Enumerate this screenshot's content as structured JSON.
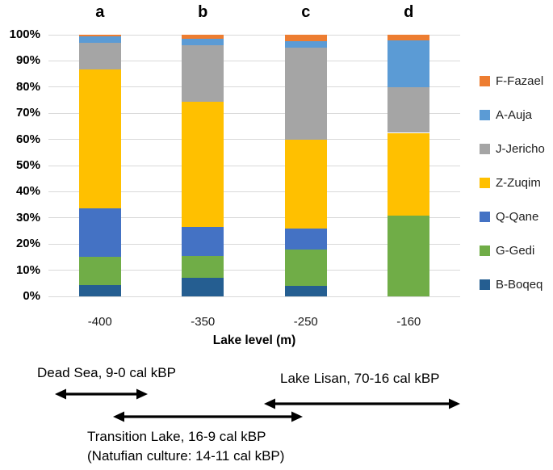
{
  "chart_data": {
    "type": "bar",
    "stacked": true,
    "units": "percent",
    "xlabel": "Lake level (m)",
    "ylabel": "",
    "ylim": [
      0,
      100
    ],
    "ytick_step": 10,
    "ytick_labels": [
      "0%",
      "10%",
      "20%",
      "30%",
      "40%",
      "50%",
      "60%",
      "70%",
      "80%",
      "90%",
      "100%"
    ],
    "categories": [
      "-400",
      "-350",
      "-250",
      "-160"
    ],
    "panel_labels": [
      "a",
      "b",
      "c",
      "d"
    ],
    "grid": true,
    "legend_position": "right",
    "stack_order": "bottom-to-top",
    "series": [
      {
        "name": "B-Boqeq",
        "color": "#255E91",
        "values": [
          4.3,
          7.0,
          4.0,
          0.0
        ]
      },
      {
        "name": "G-Gedi",
        "color": "#70AD47",
        "values": [
          10.8,
          8.5,
          14.0,
          31.0
        ]
      },
      {
        "name": "Q-Qane",
        "color": "#4472C4",
        "values": [
          18.4,
          11.0,
          8.0,
          0.0
        ]
      },
      {
        "name": "Z-Zuqim",
        "color": "#FFC000",
        "values": [
          53.2,
          48.0,
          34.0,
          31.5
        ]
      },
      {
        "name": "J-Jericho",
        "color": "#A5A5A5",
        "values": [
          10.3,
          21.6,
          35.0,
          17.5
        ]
      },
      {
        "name": "A-Auja",
        "color": "#5B9BD5",
        "values": [
          2.5,
          2.5,
          2.5,
          17.8
        ]
      },
      {
        "name": "F-Fazael",
        "color": "#ED7D31",
        "values": [
          0.5,
          1.4,
          2.5,
          2.2
        ]
      }
    ],
    "legend_order_top_to_bottom": [
      "F-Fazael",
      "A-Auja",
      "J-Jericho",
      "Z-Zuqim",
      "Q-Qane",
      "G-Gedi",
      "B-Boqeq"
    ]
  },
  "annotations": {
    "dead_sea": "Dead Sea, 9-0 cal kBP",
    "lake_lisan": "Lake Lisan, 70-16 cal kBP",
    "transition_lake_line1": "Transition Lake, 16-9 cal kBP",
    "transition_lake_line2": "(Natufian culture: 14-11 cal kBP)"
  }
}
